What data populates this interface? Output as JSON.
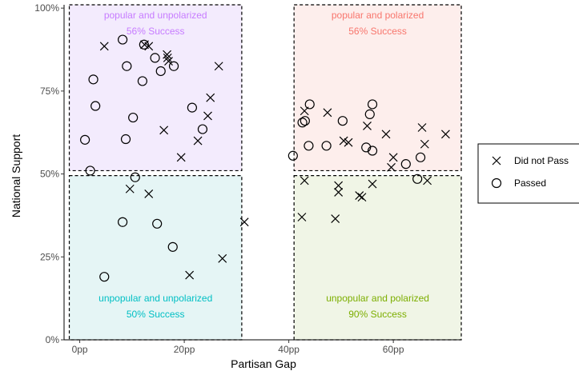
{
  "chart_data": {
    "type": "scatter",
    "xlabel": "Partisan Gap",
    "ylabel": "National Support",
    "xlim": [
      -3,
      73
    ],
    "ylim": [
      0,
      101
    ],
    "x_ticks": [
      0,
      20,
      40,
      60
    ],
    "x_tick_labels": [
      "0pp",
      "20pp",
      "40pp",
      "60pp"
    ],
    "y_ticks": [
      0,
      25,
      50,
      75,
      100
    ],
    "y_tick_labels": [
      "0%",
      "25%",
      "50%",
      "75%",
      "100%"
    ],
    "grid": false,
    "legend_position": "right",
    "quadrants": [
      {
        "name": "popular and unpolarized",
        "success": "56% Success",
        "x_range": [
          -2,
          31
        ],
        "y_range": [
          51,
          101
        ],
        "color": "#c77cff",
        "fill": "#f3ebfd"
      },
      {
        "name": "popular and polarized",
        "success": "56% Success",
        "x_range": [
          41,
          73
        ],
        "y_range": [
          51,
          101
        ],
        "color": "#f8766d",
        "fill": "#fdeeec"
      },
      {
        "name": "unpopular and unpolarized",
        "success": "50% Success",
        "x_range": [
          -2,
          31
        ],
        "y_range": [
          0,
          49.5
        ],
        "color": "#00bfc4",
        "fill": "#e5f5f5"
      },
      {
        "name": "unpopular and polarized",
        "success": "90% Success",
        "x_range": [
          41,
          73
        ],
        "y_range": [
          0,
          49.5
        ],
        "color": "#7cae00",
        "fill": "#f0f5e6"
      }
    ],
    "series": [
      {
        "name": "Did not Pass",
        "marker": "x",
        "x": [
          4.7,
          12.4,
          13.2,
          16.7,
          16.8,
          17.0,
          26.6,
          25.0,
          24.5,
          16.1,
          22.6,
          19.4,
          9.6,
          13.2,
          31.5,
          27.3,
          21.0,
          43.0,
          47.4,
          55.0,
          58.6,
          59.6,
          65.5,
          66.0,
          70.0,
          60.0,
          50.5,
          51.4,
          42.5,
          43.0,
          49.5,
          49.5,
          53.5,
          54.0,
          56.0,
          66.5,
          48.9
        ],
        "y": [
          88.5,
          89.0,
          88.5,
          86.0,
          85.0,
          84.0,
          82.5,
          73.0,
          67.5,
          63.2,
          60.0,
          55.0,
          45.5,
          44.0,
          35.5,
          24.5,
          19.5,
          69.0,
          68.5,
          64.5,
          62.0,
          52.0,
          64.0,
          59.0,
          62.0,
          55.0,
          60.0,
          59.5,
          37.0,
          48.0,
          46.5,
          44.5,
          43.5,
          43.0,
          47.0,
          48.0,
          36.5
        ]
      },
      {
        "name": "Passed",
        "marker": "o",
        "x": [
          8.2,
          12.3,
          2.6,
          9.0,
          14.4,
          18.0,
          15.5,
          12.0,
          3.0,
          10.2,
          8.8,
          21.5,
          23.5,
          1.0,
          2.0,
          10.6,
          8.2,
          14.8,
          17.8,
          4.7,
          44.0,
          43.1,
          56.0,
          55.5,
          42.6,
          50.3,
          47.2,
          43.8,
          54.8,
          56.0,
          40.8,
          62.4,
          65.2,
          64.6
        ],
        "y": [
          90.5,
          89.0,
          78.5,
          82.5,
          85.0,
          82.5,
          81.0,
          78.0,
          70.5,
          67.0,
          60.5,
          70.0,
          63.5,
          60.3,
          51.0,
          49.0,
          35.5,
          35.0,
          28.0,
          19.0,
          71.0,
          66.0,
          71.0,
          68.0,
          65.5,
          66.0,
          58.5,
          58.5,
          58.0,
          57.0,
          55.5,
          53.0,
          55.0,
          48.5
        ]
      }
    ]
  }
}
